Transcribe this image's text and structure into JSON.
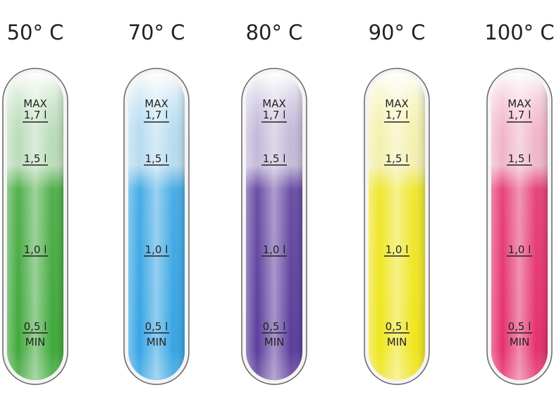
{
  "tubes": [
    {
      "temperature": "50° C",
      "color": "#3fa83a"
    },
    {
      "temperature": "70° C",
      "color": "#35a4e4"
    },
    {
      "temperature": "80° C",
      "color": "#5b3c9c"
    },
    {
      "temperature": "90° C",
      "color": "#efe51c"
    },
    {
      "temperature": "100° C",
      "color": "#e52f6c"
    }
  ],
  "scale": [
    "MAX",
    "1,7 l",
    "1,5 l",
    "1,0 l",
    "0,5 l",
    "MIN"
  ]
}
